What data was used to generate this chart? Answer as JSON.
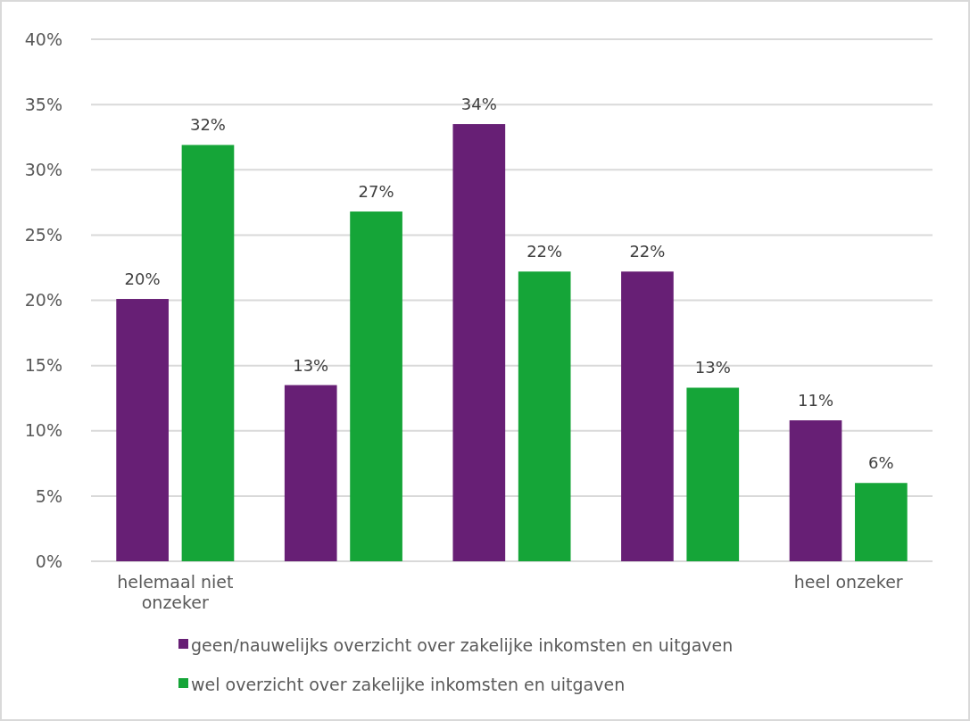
{
  "chart_data": {
    "type": "bar",
    "categories": [
      "helemaal niet onzeker",
      null,
      null,
      null,
      "heel onzeker"
    ],
    "series": [
      {
        "name": "geen/nauwelijks overzicht over zakelijke inkomsten en uitgaven",
        "color": "#671f75",
        "values": [
          20.1,
          13.5,
          33.5,
          22.2,
          10.8
        ],
        "value_labels": [
          "20%",
          "13%",
          "34%",
          "22%",
          "11%"
        ]
      },
      {
        "name": "wel overzicht over zakelijke inkomsten en uitgaven",
        "color": "#15a538",
        "values": [
          31.9,
          26.8,
          22.2,
          13.3,
          6.0
        ],
        "value_labels": [
          "32%",
          "27%",
          "22%",
          "13%",
          "6%"
        ]
      }
    ],
    "ylim": [
      0,
      40
    ],
    "yticks": [
      {
        "value": 0,
        "label": "0%"
      },
      {
        "value": 5,
        "label": "5%"
      },
      {
        "value": 10,
        "label": "10%"
      },
      {
        "value": 15,
        "label": "15%"
      },
      {
        "value": 20,
        "label": "20%"
      },
      {
        "value": 25,
        "label": "25%"
      },
      {
        "value": 30,
        "label": "30%"
      },
      {
        "value": 35,
        "label": "35%"
      },
      {
        "value": 40,
        "label": "40%"
      }
    ],
    "grid": "y",
    "legend": "bottom"
  }
}
